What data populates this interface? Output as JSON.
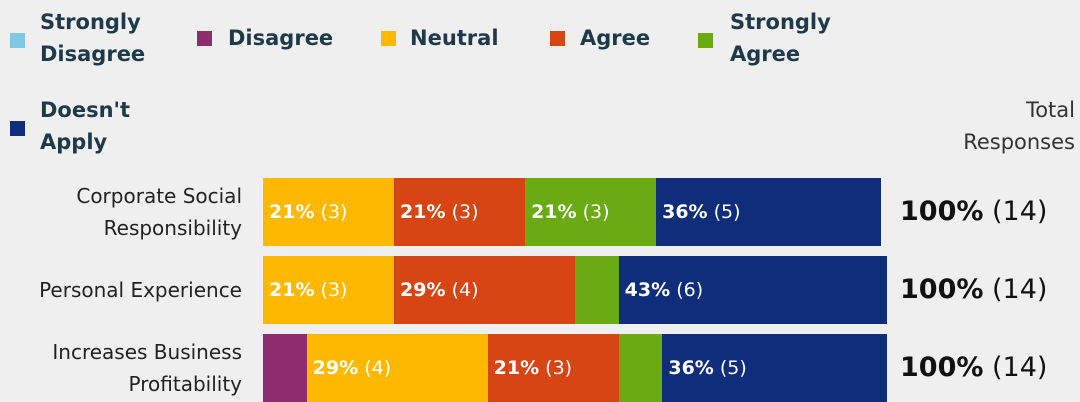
{
  "chart_data": {
    "type": "bar",
    "orientation": "horizontal",
    "stacked": true,
    "categories": [
      "Corporate Social Responsibility",
      "Personal Experience",
      "Increases Business Profitability"
    ],
    "series": [
      {
        "name": "Strongly Disagree",
        "color": "#7ec8e3",
        "values": [
          0,
          0,
          0
        ],
        "value_labels": [
          null,
          null,
          null
        ],
        "count_labels": [
          null,
          null,
          null
        ]
      },
      {
        "name": "Disagree",
        "color": "#8e2c6e",
        "values": [
          0,
          0,
          7
        ],
        "value_labels": [
          null,
          null,
          null
        ],
        "count_labels": [
          null,
          null,
          null
        ]
      },
      {
        "name": "Neutral",
        "color": "#ffb800",
        "values": [
          21,
          21,
          29
        ],
        "value_labels": [
          "21%",
          "21%",
          "29%"
        ],
        "count_labels": [
          "(3)",
          "(3)",
          "(4)"
        ]
      },
      {
        "name": "Agree",
        "color": "#d64513",
        "values": [
          21,
          29,
          21
        ],
        "value_labels": [
          "21%",
          "29%",
          "21%"
        ],
        "count_labels": [
          "(3)",
          "(4)",
          "(3)"
        ]
      },
      {
        "name": "Strongly Agree",
        "color": "#6aaa13",
        "values": [
          21,
          7,
          7
        ],
        "value_labels": [
          "21%",
          null,
          null
        ],
        "count_labels": [
          "(3)",
          null,
          null
        ]
      },
      {
        "name": "Doesn't Apply",
        "color": "#0f2d7a",
        "values": [
          36,
          43,
          36
        ],
        "value_labels": [
          "36%",
          "43%",
          "36%"
        ],
        "count_labels": [
          "(5)",
          "(6)",
          "(5)"
        ]
      }
    ],
    "total_label": "Total Responses",
    "totals": {
      "values": [
        100,
        100,
        100
      ],
      "value_labels": [
        "100%",
        "100%",
        "100%"
      ],
      "count_labels": [
        "(14)",
        "(14)",
        "(14)"
      ]
    }
  }
}
